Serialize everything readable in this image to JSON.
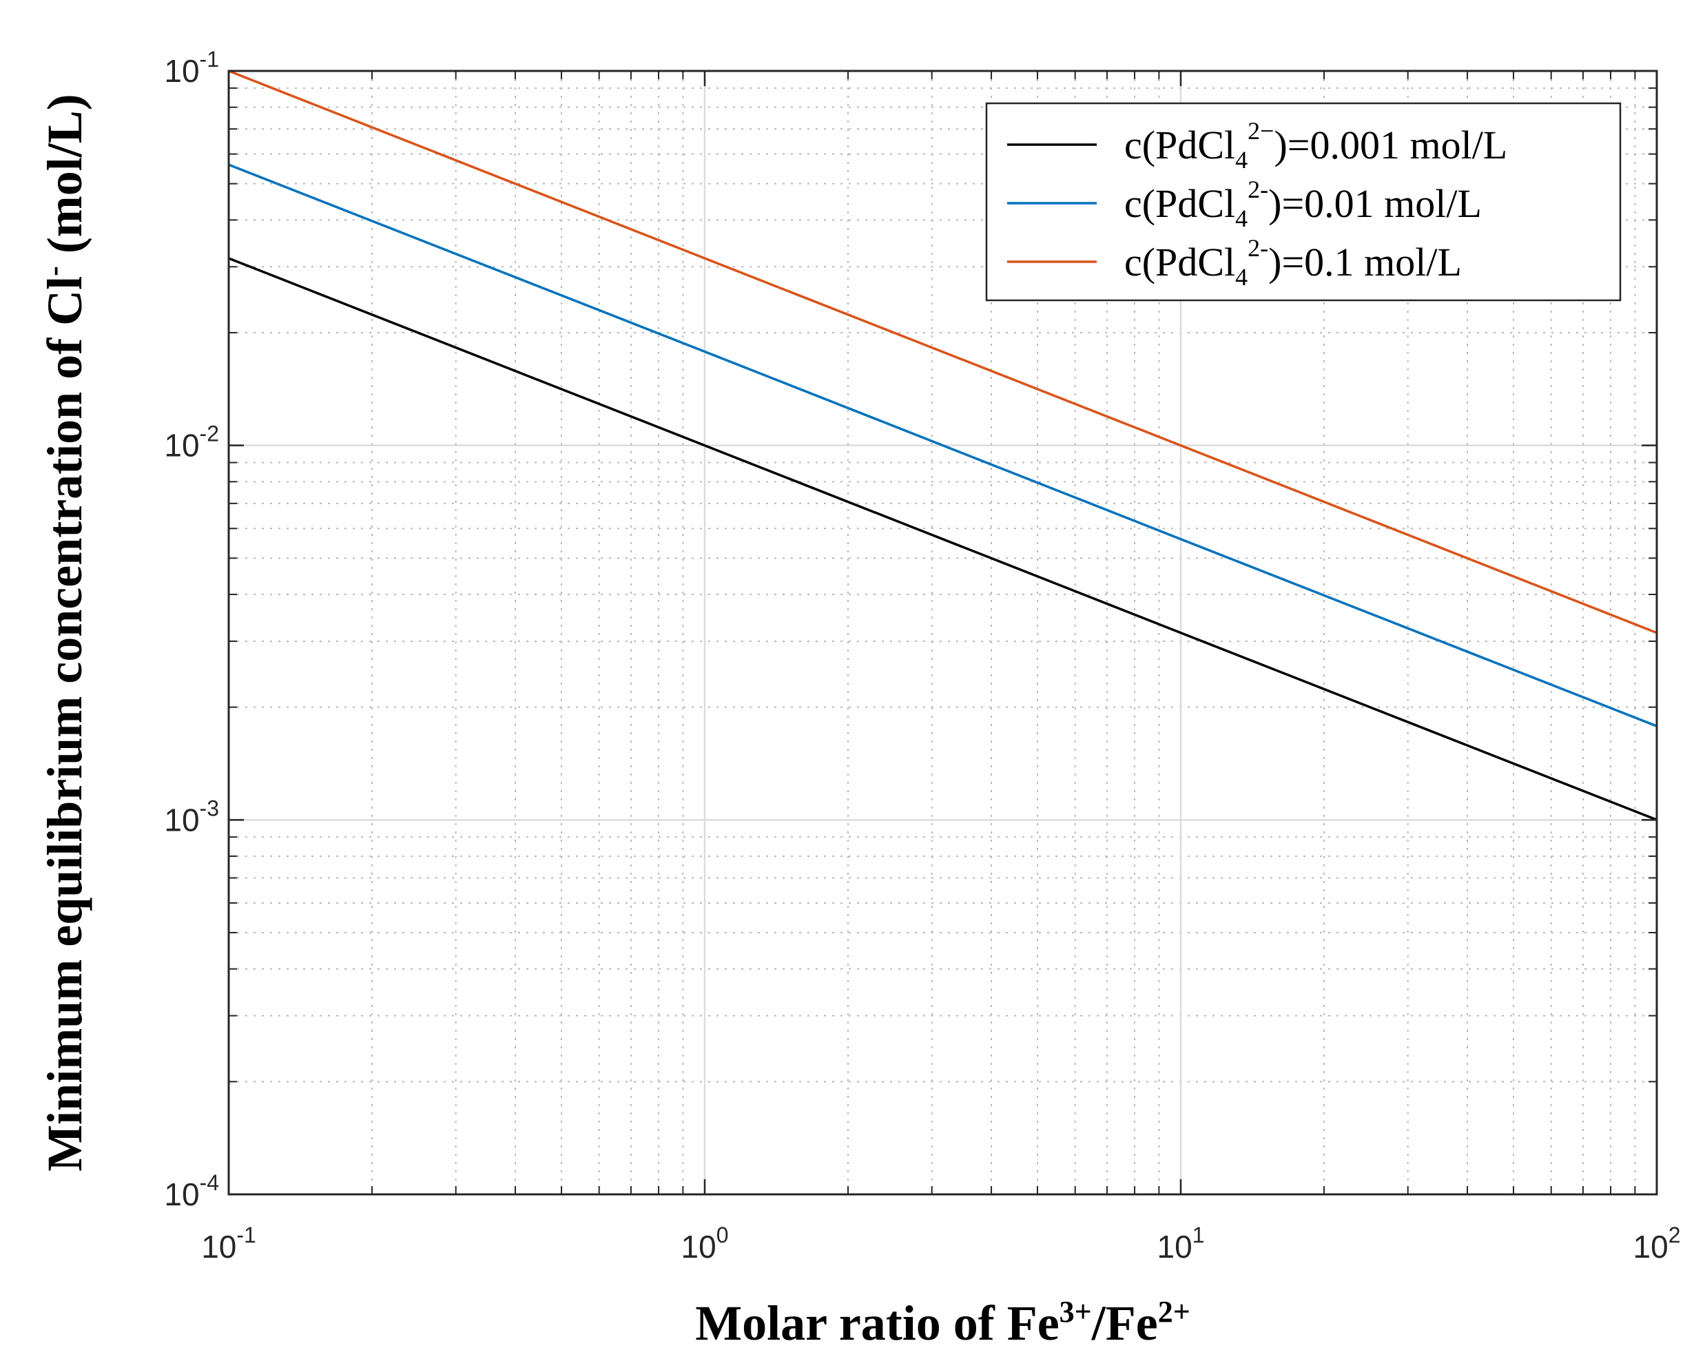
{
  "chart_data": {
    "type": "line",
    "xscale": "log",
    "yscale": "log",
    "xlim": [
      0.1,
      100
    ],
    "ylim": [
      0.0001,
      0.1
    ],
    "grid": true,
    "minor_grid": true,
    "legend_position": "top-right",
    "xticks": [
      {
        "value": 0.1,
        "base": "10",
        "exp": "-1"
      },
      {
        "value": 1,
        "base": "10",
        "exp": "0"
      },
      {
        "value": 10,
        "base": "10",
        "exp": "1"
      },
      {
        "value": 100,
        "base": "10",
        "exp": "2"
      }
    ],
    "yticks": [
      {
        "value": 0.0001,
        "base": "10",
        "exp": "-4"
      },
      {
        "value": 0.001,
        "base": "10",
        "exp": "-3"
      },
      {
        "value": 0.01,
        "base": "10",
        "exp": "-2"
      },
      {
        "value": 0.1,
        "base": "10",
        "exp": "-1"
      }
    ],
    "xlabel": {
      "main": "Molar ratio of Fe",
      "sup1": "3+",
      "mid": "/Fe",
      "sup2": "2+"
    },
    "ylabel": {
      "main": "Minimum equilibrium concentration of Cl",
      "sup": "-",
      "tail": " (mol/L)"
    },
    "series": [
      {
        "name": "c(PdCl4 2−)=0.001 mol/L",
        "label_pre": "c(PdCl",
        "label_sub": "4",
        "label_sup": "2−",
        "label_post": ")=0.001 mol/L",
        "color": "#000000",
        "x": [
          0.1,
          1,
          10,
          100
        ],
        "y": [
          0.0316,
          0.01,
          0.00316,
          0.001
        ]
      },
      {
        "name": "c(PdCl4 2-)=0.01 mol/L",
        "label_pre": "c(PdCl",
        "label_sub": "4",
        "label_sup": "2-",
        "label_post": ")=0.01 mol/L",
        "color": "#0072BD",
        "x": [
          0.1,
          1,
          10,
          100
        ],
        "y": [
          0.0562,
          0.0178,
          0.00562,
          0.00178
        ]
      },
      {
        "name": "c(PdCl4 2-)=0.1 mol/L",
        "label_pre": "c(PdCl",
        "label_sub": "4",
        "label_sup": "2-",
        "label_post": ")=0.1 mol/L",
        "color": "#D95319",
        "x": [
          0.1,
          1,
          10,
          100
        ],
        "y": [
          0.1,
          0.0316,
          0.01,
          0.00316
        ]
      }
    ]
  }
}
